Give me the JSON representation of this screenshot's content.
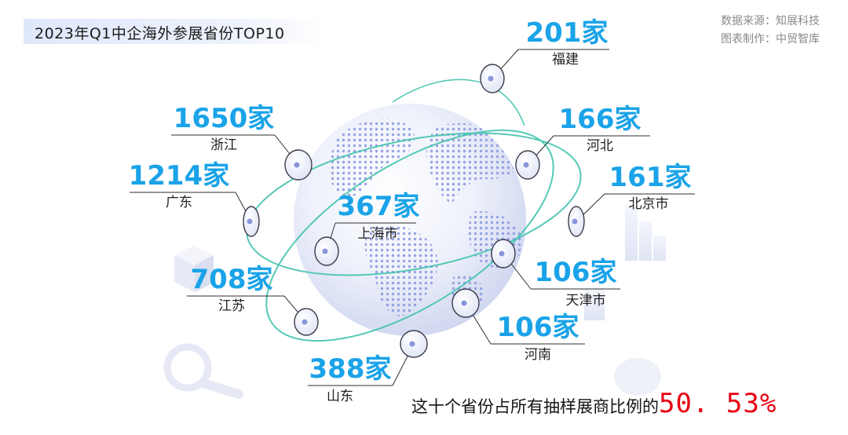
{
  "header": {
    "title": "2023年Q1中企海外参展省份TOP10",
    "source_line1": "数据来源：知展科技",
    "source_line2": "图表制作：中贸智库"
  },
  "summary": {
    "text": "这十个省份占所有抽样展商比例的",
    "value": "50. 53%"
  },
  "chart_data": {
    "type": "bar",
    "title": "2023年Q1中企海外参展省份TOP10",
    "unit": "家",
    "categories": [
      "浙江",
      "广东",
      "江苏",
      "山东",
      "上海市",
      "福建",
      "河北",
      "北京市",
      "天津市",
      "河南"
    ],
    "values": [
      1650,
      1214,
      708,
      388,
      367,
      201,
      166,
      161,
      106,
      106
    ],
    "value_labels": [
      "1650家",
      "1214家",
      "708家",
      "388家",
      "367家",
      "201家",
      "166家",
      "161家",
      "106家",
      "106家"
    ],
    "colors": {
      "value": "#1aa3e8",
      "highlight": "#e60012",
      "globe": "#9aa8e6"
    }
  }
}
